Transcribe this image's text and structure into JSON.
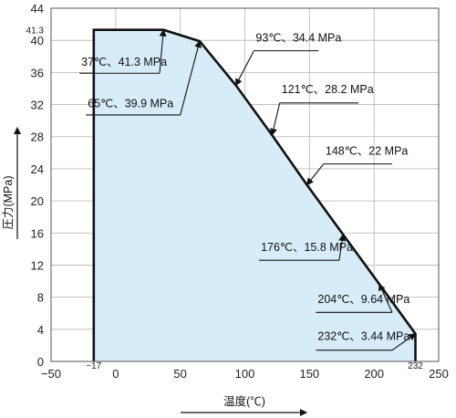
{
  "chart_data": {
    "type": "area",
    "title": "",
    "xlabel": "温度(℃)",
    "ylabel": "圧力(MPa)",
    "xlim": [
      -50,
      250
    ],
    "ylim": [
      0,
      44
    ],
    "x_ticks": [
      -50,
      0,
      50,
      100,
      150,
      200,
      250
    ],
    "x_tick_labels": [
      "−50",
      "0",
      "50",
      "100",
      "150",
      "200",
      "250"
    ],
    "y_ticks": [
      0,
      4,
      8,
      12,
      16,
      20,
      24,
      28,
      32,
      36,
      40,
      44
    ],
    "y_tick_labels": [
      "0",
      "4",
      "8",
      "12",
      "16",
      "20",
      "24",
      "28",
      "32",
      "36",
      "40",
      "44"
    ],
    "extra_x_ticks": [
      {
        "value": -17,
        "label": "−17"
      },
      {
        "value": 232,
        "label": "232"
      }
    ],
    "extra_y_ticks": [
      {
        "value": 41.3,
        "label": "41.3"
      }
    ],
    "grid": true,
    "fill_color": "#d6ecf8",
    "line_color": "#111111",
    "series": [
      {
        "x": [
          -17,
          -17,
          37,
          65,
          93,
          121,
          148,
          176,
          204,
          232,
          232
        ],
        "y": [
          0,
          41.3,
          41.3,
          39.9,
          34.4,
          28.2,
          22,
          15.8,
          9.64,
          3.44,
          0
        ]
      }
    ],
    "annotations": [
      {
        "text": "37℃、41.3 MPa",
        "x": 37,
        "y": 41.3,
        "lx": -28,
        "ly": 36.4,
        "lx2": 34,
        "ly2": 35.9
      },
      {
        "text": "65℃、39.9 MPa",
        "x": 65,
        "y": 39.9,
        "lx": -23,
        "ly": 31.2,
        "lx2": 50,
        "ly2": 30.7
      },
      {
        "text": "93℃、34.4 MPa",
        "x": 93,
        "y": 34.4,
        "lx": 107,
        "ly": 39.4,
        "lx2": 157,
        "ly2": 38.7
      },
      {
        "text": "121℃、28.2 MPa",
        "x": 121,
        "y": 28.2,
        "lx": 127,
        "ly": 33.0,
        "lx2": 188,
        "ly2": 32.2
      },
      {
        "text": "148℃、22 MPa",
        "x": 148,
        "y": 22,
        "lx": 161,
        "ly": 25.3,
        "lx2": 214,
        "ly2": 24.6
      },
      {
        "text": "176℃、15.8 MPa",
        "x": 176,
        "y": 15.8,
        "lx": 111,
        "ly": 13.3,
        "lx2": 173,
        "ly2": 12.6
      },
      {
        "text": "204℃、9.64 MPa",
        "x": 204,
        "y": 9.64,
        "lx": 155,
        "ly": 6.8,
        "lx2": 214,
        "ly2": 6.1
      },
      {
        "text": "232℃、3.44 MPa",
        "x": 232,
        "y": 3.44,
        "lx": 155,
        "ly": 2.2,
        "lx2": 214,
        "ly2": 1.4
      }
    ]
  }
}
